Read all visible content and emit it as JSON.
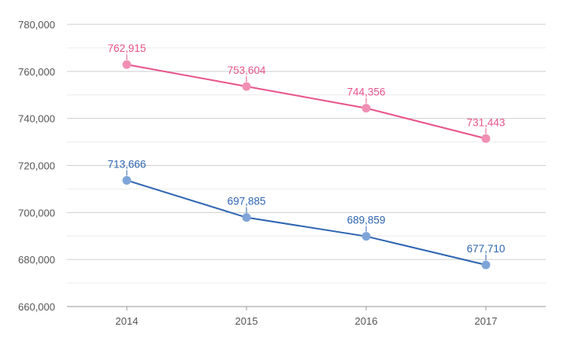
{
  "chart_data": {
    "type": "line",
    "title": "",
    "xlabel": "",
    "ylabel": "",
    "categories": [
      "2014",
      "2015",
      "2016",
      "2017"
    ],
    "ylim": [
      660000,
      780000
    ],
    "y_ticks": [
      660000,
      680000,
      700000,
      720000,
      740000,
      760000,
      780000
    ],
    "y_tick_labels": [
      "660,000",
      "680,000",
      "700,000",
      "720,000",
      "740,000",
      "760,000",
      "780,000"
    ],
    "grid": true,
    "legend": "none",
    "series": [
      {
        "name": "series-1",
        "color": "#e8548a",
        "marker_color": "#f08fb3",
        "values": [
          762915,
          753604,
          744356,
          731443
        ],
        "labels": [
          "762,915",
          "753,604",
          "744,356",
          "731,443"
        ]
      },
      {
        "name": "series-2",
        "color": "#2f65b1",
        "marker_color": "#7fa5d8",
        "values": [
          713666,
          697885,
          689859,
          677710
        ],
        "labels": [
          "713,666",
          "697,885",
          "689,859",
          "677,710"
        ]
      }
    ]
  }
}
